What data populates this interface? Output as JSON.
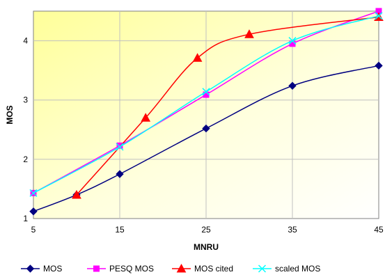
{
  "chart_data": {
    "type": "line",
    "title": "",
    "xlabel": "MNRU",
    "ylabel": "MOS",
    "xlim": [
      5,
      45
    ],
    "ylim": [
      1,
      4.5
    ],
    "xticks": [
      "5",
      "15",
      "25",
      "35",
      "45"
    ],
    "yticks": [
      "1",
      "2",
      "3",
      "4"
    ],
    "grid": true,
    "legend_position": "bottom",
    "series": [
      {
        "name": "MOS",
        "color": "#000080",
        "marker": "diamond",
        "x": [
          5,
          10,
          15,
          25,
          35,
          45
        ],
        "y": [
          1.12,
          1.4,
          1.75,
          2.52,
          3.24,
          3.58
        ]
      },
      {
        "name": "PESQ MOS",
        "color": "#ff00ff",
        "marker": "square",
        "x": [
          5,
          15,
          25,
          35,
          45
        ],
        "y": [
          1.43,
          2.23,
          3.09,
          3.95,
          4.5
        ]
      },
      {
        "name": "MOS cited",
        "color": "#ff0000",
        "marker": "triangle",
        "x": [
          10,
          18,
          24,
          30,
          45
        ],
        "y": [
          1.4,
          2.7,
          3.71,
          4.11,
          4.4
        ]
      },
      {
        "name": "scaled MOS",
        "color": "#00ffff",
        "marker": "x",
        "x": [
          5,
          15,
          25,
          35,
          45
        ],
        "y": [
          1.43,
          2.21,
          3.14,
          4.0,
          4.42
        ]
      }
    ]
  }
}
